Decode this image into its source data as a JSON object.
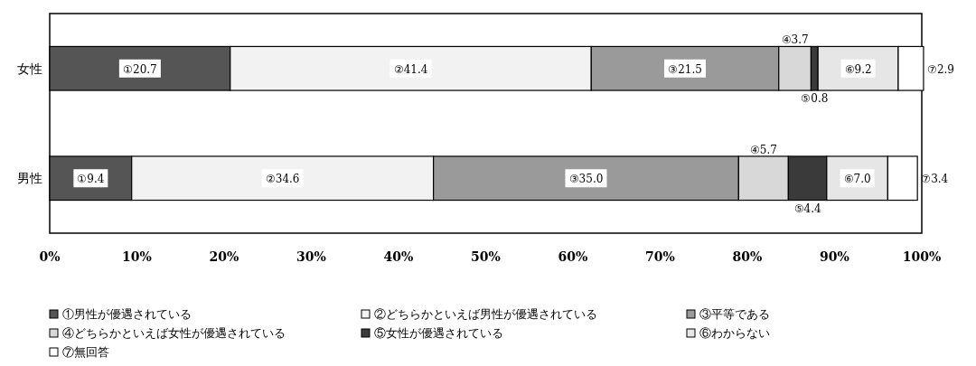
{
  "chart_data": {
    "type": "bar",
    "orientation": "horizontal",
    "stacked": true,
    "categories": [
      "女性",
      "男性"
    ],
    "series": [
      {
        "name": "①男性が優遇されている",
        "color": "#555555",
        "values": [
          20.7,
          9.4
        ],
        "value_labels": [
          "①20.7",
          "①9.4"
        ]
      },
      {
        "name": "②どちらかといえば男性が優遇されている",
        "color": "#f2f2f2",
        "values": [
          41.4,
          34.6
        ],
        "value_labels": [
          "②41.4",
          "②34.6"
        ]
      },
      {
        "name": "③平等である",
        "color": "#9a9a9a",
        "values": [
          21.5,
          35.0
        ],
        "value_labels": [
          "③21.5",
          "③35.0"
        ]
      },
      {
        "name": "④どちらかといえば女性が優遇されている",
        "color": "#d8d8d8",
        "values": [
          3.7,
          5.7
        ],
        "value_labels": [
          "④3.7",
          "④5.7"
        ]
      },
      {
        "name": "⑤女性が優遇されている",
        "color": "#3a3a3a",
        "values": [
          0.8,
          4.4
        ],
        "value_labels": [
          "⑤0.8",
          "⑤4.4"
        ]
      },
      {
        "name": "⑥わからない",
        "color": "#e6e6e6",
        "values": [
          9.2,
          7.0
        ],
        "value_labels": [
          "⑥9.2",
          "⑥7.0"
        ]
      },
      {
        "name": "⑦無回答",
        "color": "#ffffff",
        "values": [
          2.9,
          3.4
        ],
        "value_labels": [
          "⑦2.9",
          "⑦3.4"
        ]
      }
    ],
    "xlim": [
      0,
      100
    ],
    "xticks": [
      {
        "value": 0,
        "label": "0%"
      },
      {
        "value": 10,
        "label": "10%"
      },
      {
        "value": 20,
        "label": "20%"
      },
      {
        "value": 30,
        "label": "30%"
      },
      {
        "value": 40,
        "label": "40%"
      },
      {
        "value": 50,
        "label": "50%"
      },
      {
        "value": 60,
        "label": "60%"
      },
      {
        "value": 70,
        "label": "70%"
      },
      {
        "value": 80,
        "label": "80%"
      },
      {
        "value": 90,
        "label": "90%"
      },
      {
        "value": 100,
        "label": "100%"
      }
    ],
    "legend": "bottom"
  }
}
